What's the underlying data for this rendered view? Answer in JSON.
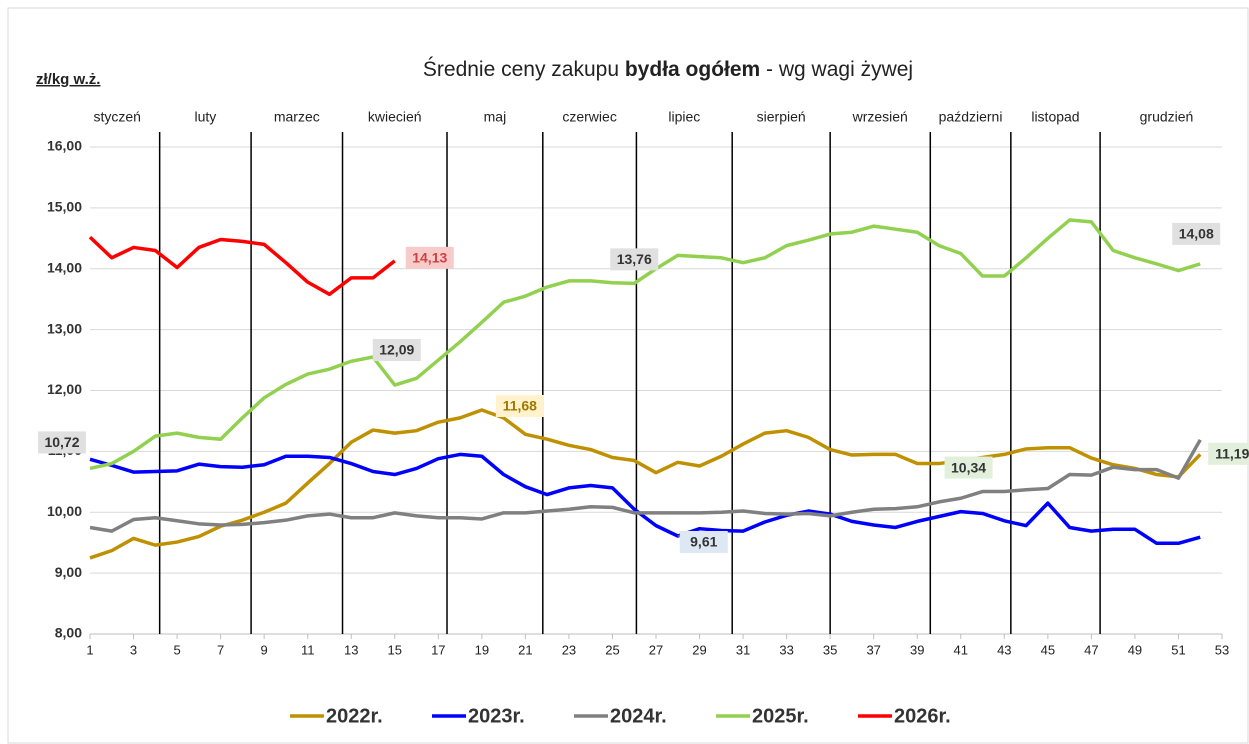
{
  "chart_data": {
    "type": "line",
    "title": [
      "Średnie ceny zakupu ",
      "bydła ogółem",
      " - wg wagi żywej"
    ],
    "y_label": "zł/kg w.ż.",
    "months": [
      "styczeń",
      "luty",
      "marzec",
      "kwiecień",
      "maj",
      "czerwiec",
      "lipiec",
      "sierpień",
      "wrzesień",
      "październi",
      "listopad",
      "grudzień"
    ],
    "month_bounds": [
      4.2,
      8.4,
      12.6,
      17.4,
      21.8,
      26.1,
      30.5,
      35.0,
      39.6,
      43.3,
      47.4
    ],
    "x": [
      1,
      2,
      3,
      4,
      5,
      6,
      7,
      8,
      9,
      10,
      11,
      12,
      13,
      14,
      15,
      16,
      17,
      18,
      19,
      20,
      21,
      22,
      23,
      24,
      25,
      26,
      27,
      28,
      29,
      30,
      31,
      32,
      33,
      34,
      35,
      36,
      37,
      38,
      39,
      40,
      41,
      42,
      43,
      44,
      45,
      46,
      47,
      48,
      49,
      50,
      51,
      52
    ],
    "xlim": [
      1,
      53
    ],
    "xticks": [
      1,
      3,
      5,
      7,
      9,
      11,
      13,
      15,
      17,
      19,
      21,
      23,
      25,
      27,
      29,
      31,
      33,
      35,
      37,
      39,
      41,
      43,
      45,
      47,
      49,
      51,
      53
    ],
    "ylim": [
      8,
      16
    ],
    "yticks": [
      {
        "value": 8,
        "label": "8,00"
      },
      {
        "value": 9,
        "label": "9,00"
      },
      {
        "value": 10,
        "label": "10,00"
      },
      {
        "value": 11,
        "label": "11,00"
      },
      {
        "value": 12,
        "label": "12,00"
      },
      {
        "value": 13,
        "label": "13,00"
      },
      {
        "value": 14,
        "label": "14,00"
      },
      {
        "value": 15,
        "label": "15,00"
      },
      {
        "value": 16,
        "label": "16,00"
      }
    ],
    "grid": true,
    "series": [
      {
        "name": "2022r.",
        "color": "#bf9000",
        "label_color": "#fff2cc",
        "values": [
          9.25,
          9.37,
          9.57,
          9.46,
          9.51,
          9.6,
          9.77,
          9.87,
          10.0,
          10.15,
          10.48,
          10.8,
          11.15,
          11.35,
          11.3,
          11.34,
          11.48,
          11.55,
          11.68,
          11.55,
          11.28,
          11.2,
          11.1,
          11.03,
          10.9,
          10.85,
          10.65,
          10.82,
          10.76,
          10.92,
          11.12,
          11.3,
          11.34,
          11.23,
          11.03,
          10.94,
          10.95,
          10.95,
          10.8,
          10.8,
          10.85,
          10.9,
          10.95,
          11.04,
          11.06,
          11.06,
          10.89,
          10.78,
          10.72,
          10.62,
          10.58,
          10.95
        ],
        "value_labels": [
          null,
          null,
          null,
          null,
          null,
          null,
          null,
          null,
          null,
          null,
          null,
          null,
          null,
          null,
          null,
          null,
          null,
          null,
          "11,68",
          null,
          null,
          null,
          null,
          null,
          null,
          null,
          null,
          null,
          null,
          null,
          null,
          null,
          null,
          null,
          null,
          null,
          null,
          null,
          null,
          null,
          null,
          null,
          null,
          null,
          null,
          null,
          null,
          null,
          null,
          null,
          null,
          null
        ]
      },
      {
        "name": "2023r.",
        "color": "#0000ff",
        "label_color": "#dde8f4",
        "values": [
          10.87,
          10.77,
          10.66,
          10.67,
          10.68,
          10.79,
          10.75,
          10.74,
          10.78,
          10.92,
          10.92,
          10.9,
          10.8,
          10.67,
          10.62,
          10.72,
          10.88,
          10.95,
          10.92,
          10.62,
          10.42,
          10.29,
          10.4,
          10.44,
          10.4,
          10.05,
          9.78,
          9.61,
          9.73,
          9.7,
          9.69,
          9.84,
          9.95,
          10.02,
          9.97,
          9.85,
          9.79,
          9.75,
          9.85,
          9.93,
          10.01,
          9.98,
          9.86,
          9.78,
          10.15,
          9.75,
          9.69,
          9.72,
          9.72,
          9.49,
          9.49,
          9.59
        ],
        "value_labels": [
          null,
          null,
          null,
          null,
          null,
          null,
          null,
          null,
          null,
          null,
          null,
          null,
          null,
          null,
          null,
          null,
          null,
          null,
          null,
          null,
          null,
          null,
          null,
          null,
          null,
          null,
          null,
          "9,61",
          null,
          null,
          null,
          null,
          null,
          null,
          null,
          null,
          null,
          null,
          null,
          null,
          null,
          null,
          null,
          null,
          null,
          null,
          null,
          null,
          null,
          null,
          null,
          null
        ]
      },
      {
        "name": "2024r.",
        "color": "#808080",
        "label_color": "#e2efda",
        "values": [
          9.75,
          9.69,
          9.88,
          9.91,
          9.86,
          9.81,
          9.79,
          9.8,
          9.83,
          9.87,
          9.94,
          9.97,
          9.91,
          9.91,
          9.99,
          9.94,
          9.91,
          9.91,
          9.89,
          9.99,
          9.99,
          10.02,
          10.05,
          10.09,
          10.08,
          9.99,
          9.99,
          9.99,
          9.99,
          10.0,
          10.02,
          9.98,
          9.97,
          9.98,
          9.94,
          10.0,
          10.05,
          10.06,
          10.09,
          10.17,
          10.23,
          10.34,
          10.34,
          10.37,
          10.39,
          10.62,
          10.61,
          10.74,
          10.7,
          10.7,
          10.56,
          11.19
        ],
        "value_labels": [
          null,
          null,
          null,
          null,
          null,
          null,
          null,
          null,
          null,
          null,
          null,
          null,
          null,
          null,
          null,
          null,
          null,
          null,
          null,
          null,
          null,
          null,
          null,
          null,
          null,
          null,
          null,
          null,
          null,
          null,
          null,
          null,
          null,
          null,
          null,
          null,
          null,
          null,
          null,
          null,
          null,
          "10,34",
          null,
          null,
          null,
          null,
          null,
          null,
          null,
          null,
          null,
          "11,19"
        ]
      },
      {
        "name": "2025r.",
        "color": "#92d050",
        "label_color": "#e0e0e0",
        "values": [
          10.72,
          10.8,
          11.0,
          11.25,
          11.3,
          11.23,
          11.2,
          11.55,
          11.88,
          12.1,
          12.27,
          12.35,
          12.48,
          12.55,
          12.09,
          12.2,
          12.5,
          12.8,
          13.12,
          13.45,
          13.55,
          13.7,
          13.8,
          13.8,
          13.77,
          13.76,
          14.0,
          14.22,
          14.2,
          14.18,
          14.1,
          14.18,
          14.38,
          14.47,
          14.57,
          14.6,
          14.7,
          14.65,
          14.6,
          14.38,
          14.25,
          13.88,
          13.88,
          14.18,
          14.5,
          14.8,
          14.77,
          14.3,
          14.18,
          14.08,
          13.97,
          14.08
        ],
        "value_labels": [
          "10,72",
          null,
          null,
          null,
          null,
          null,
          null,
          null,
          null,
          null,
          null,
          null,
          null,
          null,
          "12,09",
          null,
          null,
          null,
          null,
          null,
          null,
          null,
          null,
          null,
          null,
          "13,76",
          null,
          null,
          null,
          null,
          null,
          null,
          null,
          null,
          null,
          null,
          null,
          null,
          null,
          null,
          null,
          null,
          null,
          null,
          null,
          null,
          null,
          null,
          null,
          null,
          null,
          "14,08"
        ]
      },
      {
        "name": "2026r.",
        "color": "#ff0000",
        "label_color": "#f8cbcb",
        "values": [
          14.52,
          14.18,
          14.35,
          14.3,
          14.02,
          14.35,
          14.48,
          14.45,
          14.4,
          14.1,
          13.78,
          13.58,
          13.85,
          13.85,
          14.13,
          null,
          null,
          null,
          null,
          null,
          null,
          null,
          null,
          null,
          null,
          null,
          null,
          null,
          null,
          null,
          null,
          null,
          null,
          null,
          null,
          null,
          null,
          null,
          null,
          null,
          null,
          null,
          null,
          null,
          null,
          null,
          null,
          null,
          null,
          null,
          null,
          null
        ],
        "value_labels": [
          null,
          null,
          null,
          null,
          null,
          null,
          null,
          null,
          null,
          null,
          null,
          null,
          null,
          null,
          "14,13",
          null,
          null,
          null,
          null,
          null,
          null,
          null,
          null,
          null,
          null,
          null,
          null,
          null,
          null,
          null,
          null,
          null,
          null,
          null,
          null,
          null,
          null,
          null,
          null,
          null,
          null,
          null,
          null,
          null,
          null,
          null,
          null,
          null,
          null,
          null,
          null,
          null
        ]
      }
    ]
  }
}
